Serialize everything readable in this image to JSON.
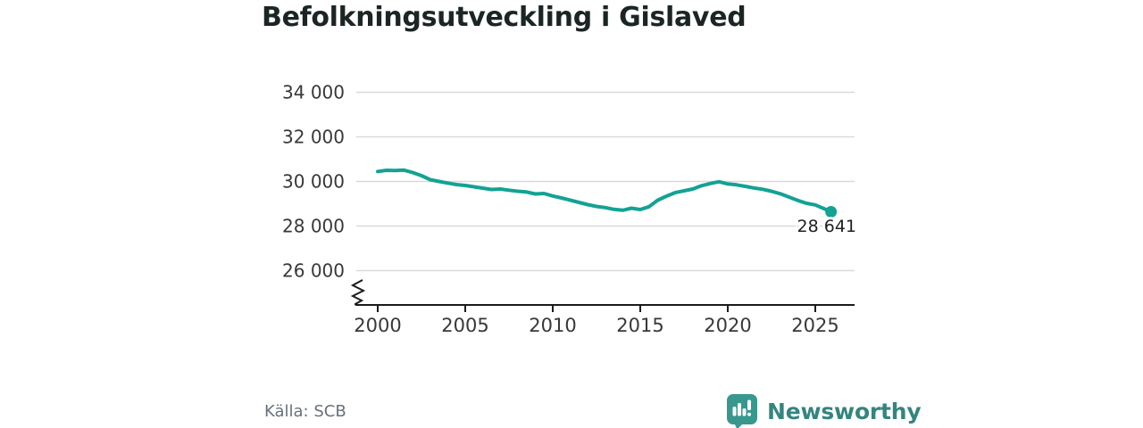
{
  "title": "Befolkningsutveckling i Gislaved",
  "source": {
    "label": "Källa: SCB"
  },
  "branding": {
    "name": "Newsworthy",
    "icon": "newsworthy-speech-bubble-chart-icon",
    "icon_color": "#38988e",
    "wordmark_color": "#35857f"
  },
  "colors": {
    "line": "#13a294",
    "grid": "#d9d9d9",
    "axis": "#1b1b1b",
    "tick_label": "#383838",
    "title": "#1c2525",
    "annotation": "#212121",
    "source_text": "#68717b"
  },
  "chart_data": {
    "type": "line",
    "title": "Befolkningsutveckling i Gislaved",
    "xlabel": "",
    "ylabel": "",
    "source": "Källa: SCB",
    "x_ticks": [
      2000,
      2005,
      2010,
      2015,
      2020,
      2025
    ],
    "y_ticks": [
      {
        "value": 34000,
        "label": "34 000"
      },
      {
        "value": 32000,
        "label": "32 000"
      },
      {
        "value": 30000,
        "label": "30 000"
      },
      {
        "value": 28000,
        "label": "28 000"
      },
      {
        "value": 26000,
        "label": "26 000"
      }
    ],
    "y_axis_break": true,
    "grid": "horizontal",
    "legend_position": "none",
    "end_annotation": {
      "label": "28 641",
      "value": 28641
    },
    "series": [
      {
        "name": "Befolkning",
        "points": [
          [
            2000.0,
            30450
          ],
          [
            2000.5,
            30500
          ],
          [
            2001.0,
            30490
          ],
          [
            2001.5,
            30510
          ],
          [
            2002.0,
            30400
          ],
          [
            2002.5,
            30260
          ],
          [
            2003.0,
            30080
          ],
          [
            2003.5,
            30000
          ],
          [
            2004.0,
            29930
          ],
          [
            2004.5,
            29860
          ],
          [
            2005.0,
            29820
          ],
          [
            2005.5,
            29760
          ],
          [
            2006.0,
            29700
          ],
          [
            2006.5,
            29640
          ],
          [
            2007.0,
            29660
          ],
          [
            2007.5,
            29610
          ],
          [
            2008.0,
            29560
          ],
          [
            2008.5,
            29530
          ],
          [
            2009.0,
            29440
          ],
          [
            2009.5,
            29460
          ],
          [
            2010.0,
            29350
          ],
          [
            2010.5,
            29260
          ],
          [
            2011.0,
            29160
          ],
          [
            2011.5,
            29060
          ],
          [
            2012.0,
            28960
          ],
          [
            2012.5,
            28880
          ],
          [
            2013.0,
            28830
          ],
          [
            2013.5,
            28750
          ],
          [
            2014.0,
            28710
          ],
          [
            2014.5,
            28800
          ],
          [
            2015.0,
            28740
          ],
          [
            2015.5,
            28870
          ],
          [
            2016.0,
            29160
          ],
          [
            2016.5,
            29340
          ],
          [
            2017.0,
            29500
          ],
          [
            2017.5,
            29580
          ],
          [
            2018.0,
            29660
          ],
          [
            2018.5,
            29810
          ],
          [
            2019.0,
            29910
          ],
          [
            2019.5,
            29990
          ],
          [
            2020.0,
            29890
          ],
          [
            2020.5,
            29850
          ],
          [
            2021.0,
            29780
          ],
          [
            2021.5,
            29710
          ],
          [
            2022.0,
            29650
          ],
          [
            2022.5,
            29560
          ],
          [
            2023.0,
            29450
          ],
          [
            2023.5,
            29300
          ],
          [
            2024.0,
            29150
          ],
          [
            2024.5,
            29020
          ],
          [
            2025.0,
            28950
          ],
          [
            2025.5,
            28780
          ],
          [
            2025.9,
            28641
          ]
        ]
      }
    ]
  }
}
